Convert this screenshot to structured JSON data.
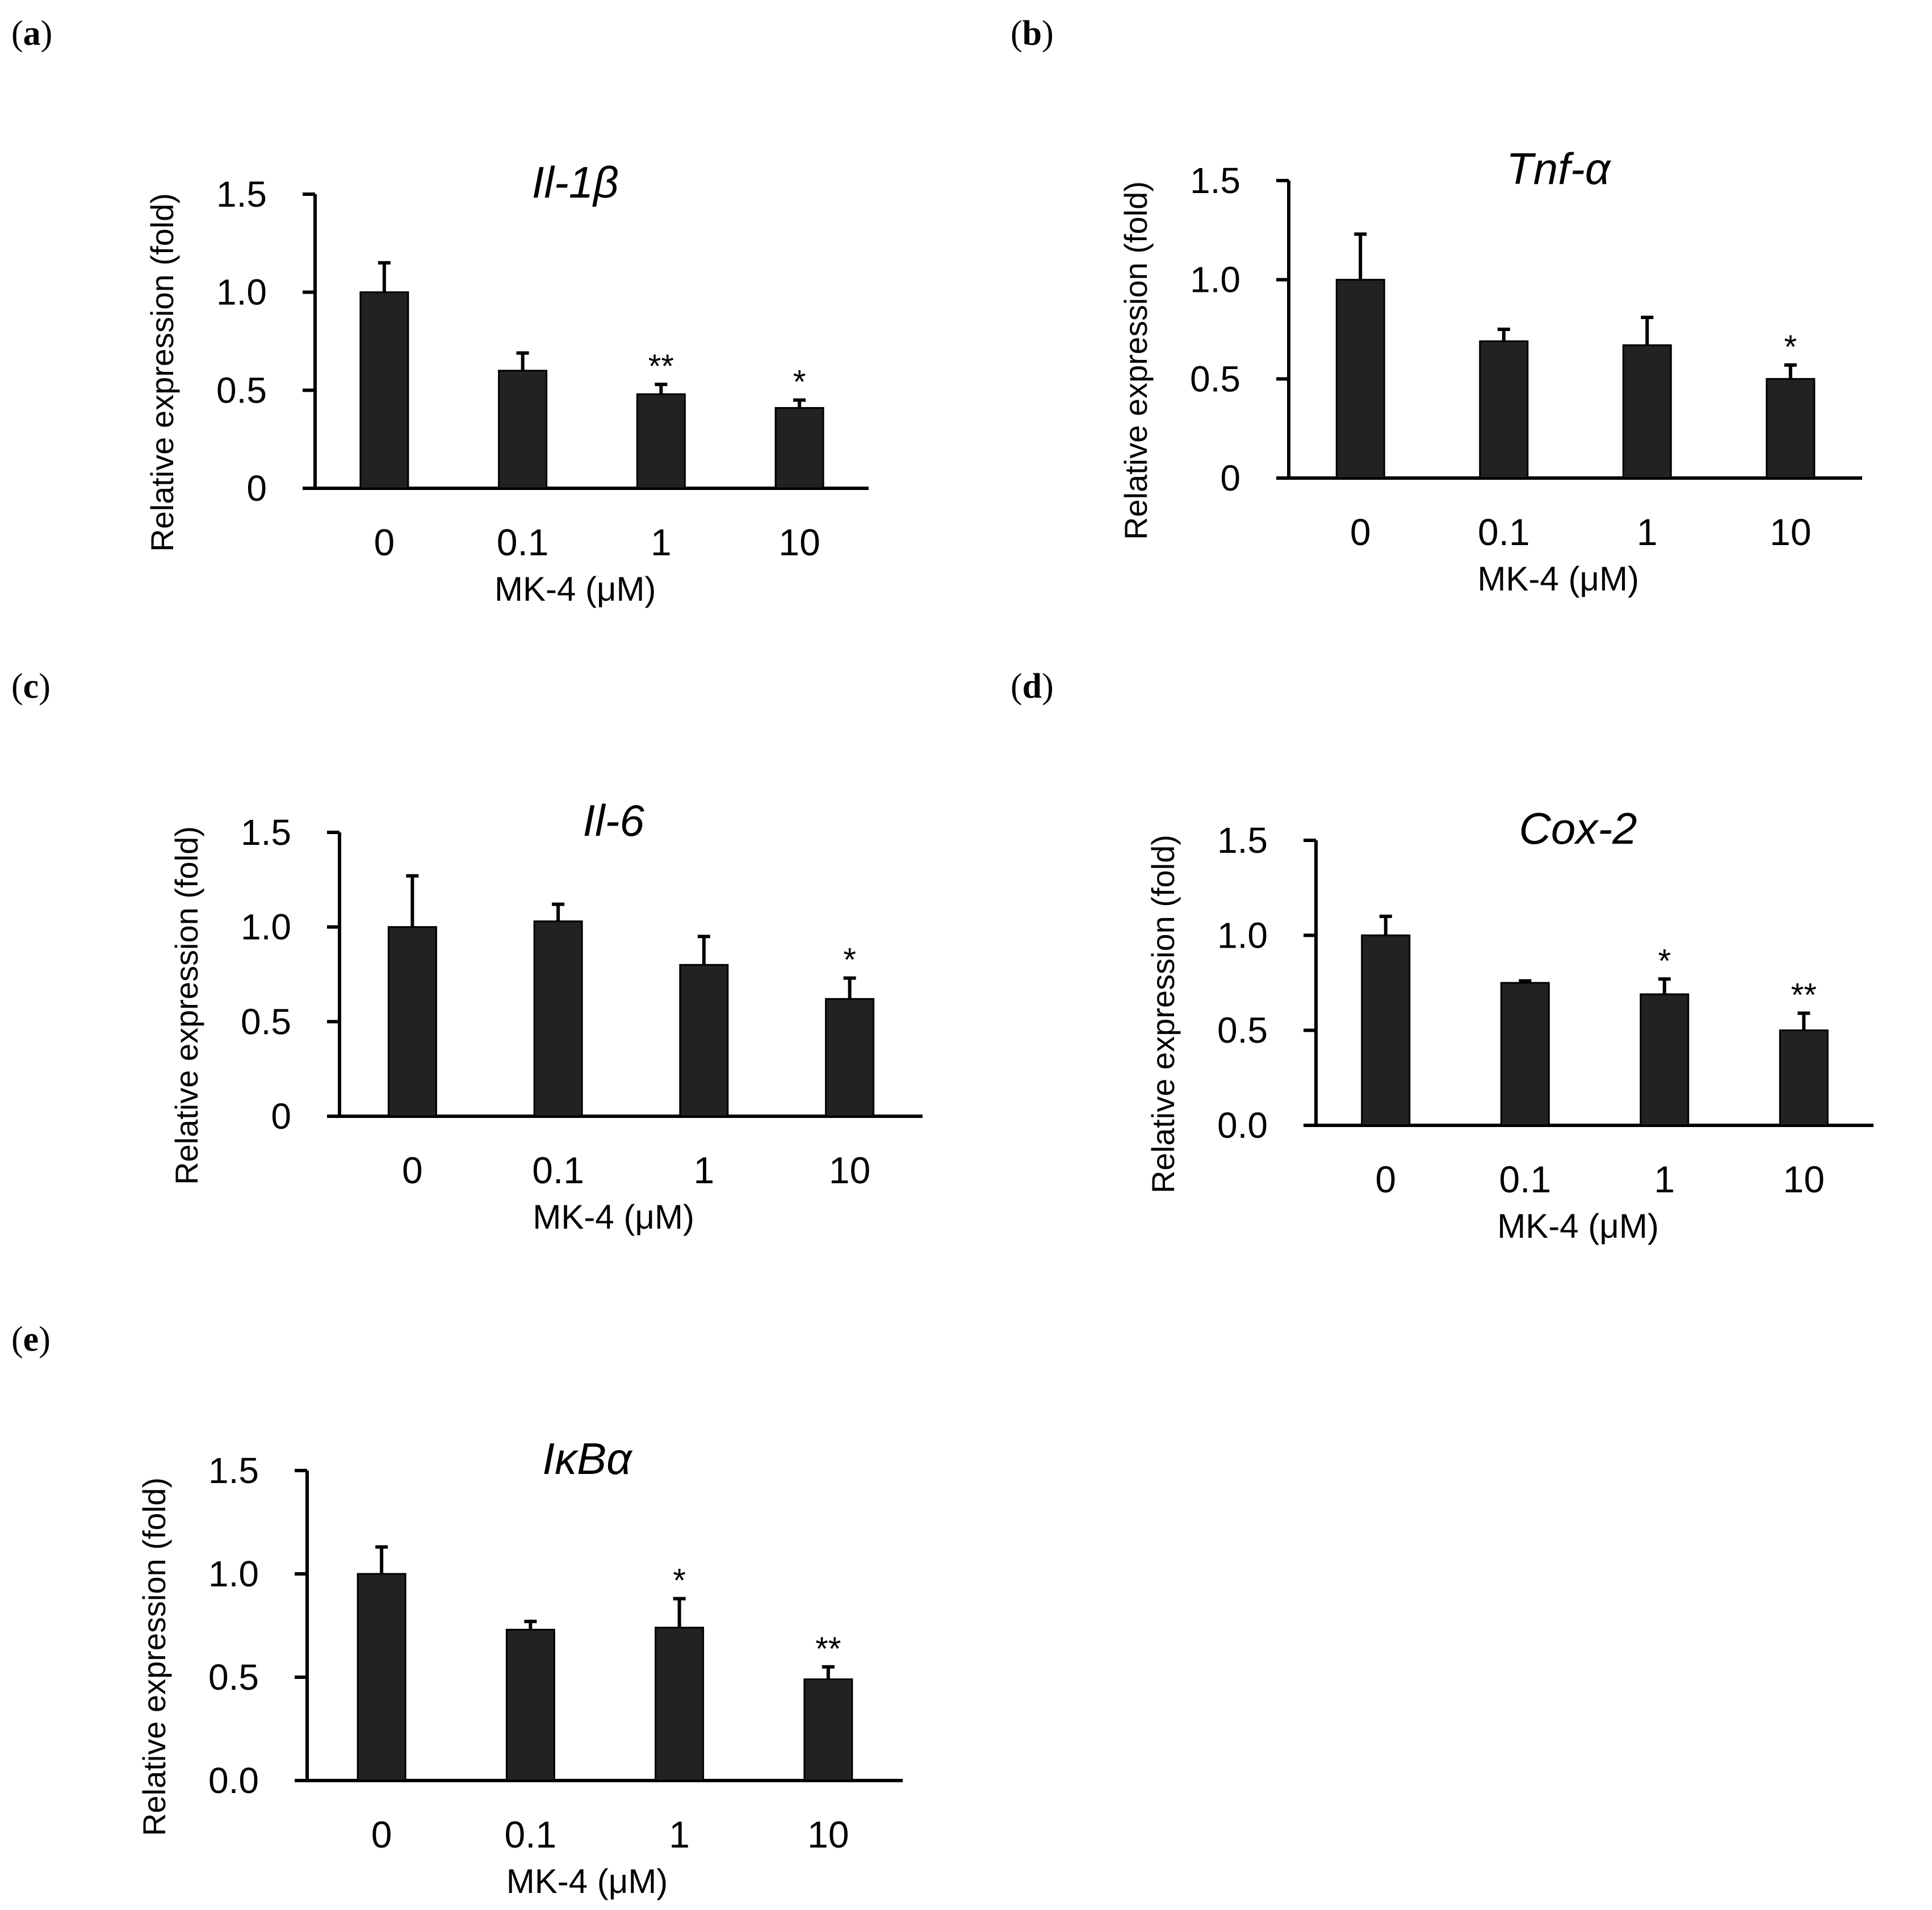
{
  "figure": {
    "style": {
      "bar_color": "#222222",
      "axis_color": "#000000",
      "background": "#ffffff"
    },
    "panels": [
      {
        "label": "a",
        "gene": "Il-1β"
      },
      {
        "label": "b",
        "gene": "Tnf-α"
      },
      {
        "label": "c",
        "gene": "Il-6"
      },
      {
        "label": "d",
        "gene": "Cox-2"
      },
      {
        "label": "e",
        "gene": "IκBα"
      }
    ]
  },
  "chart_data": [
    {
      "type": "bar",
      "panel": "a",
      "title": "Il-1β",
      "xlabel": "MK-4 (μM)",
      "ylabel": "Relative expression (fold)",
      "categories": [
        "0",
        "0.1",
        "1",
        "10"
      ],
      "values": [
        1.0,
        0.6,
        0.48,
        0.41
      ],
      "errors": [
        0.15,
        0.09,
        0.05,
        0.04
      ],
      "significance": [
        "",
        "",
        "**",
        "*"
      ],
      "ylim": [
        0,
        1.5
      ],
      "yticks": [
        0,
        0.5,
        1.0,
        1.5
      ],
      "ytick_labels": [
        "0",
        "0.5",
        "1.0",
        "1.5"
      ]
    },
    {
      "type": "bar",
      "panel": "b",
      "title": "Tnf-α",
      "xlabel": "MK-4 (μM)",
      "ylabel": "Relative expression (fold)",
      "categories": [
        "0",
        "0.1",
        "1",
        "10"
      ],
      "values": [
        1.0,
        0.69,
        0.67,
        0.5
      ],
      "errors": [
        0.23,
        0.06,
        0.14,
        0.07
      ],
      "significance": [
        "",
        "",
        "",
        "*"
      ],
      "ylim": [
        0,
        1.5
      ],
      "yticks": [
        0,
        0.5,
        1.0,
        1.5
      ],
      "ytick_labels": [
        "0",
        "0.5",
        "1.0",
        "1.5"
      ]
    },
    {
      "type": "bar",
      "panel": "c",
      "title": "Il-6",
      "xlabel": "MK-4 (μM)",
      "ylabel": "Relative expression (fold)",
      "categories": [
        "0",
        "0.1",
        "1",
        "10"
      ],
      "values": [
        1.0,
        1.03,
        0.8,
        0.62
      ],
      "errors": [
        0.27,
        0.09,
        0.15,
        0.11
      ],
      "significance": [
        "",
        "",
        "",
        "*"
      ],
      "ylim": [
        0,
        1.5
      ],
      "yticks": [
        0,
        0.5,
        1.0,
        1.5
      ],
      "ytick_labels": [
        "0",
        "0.5",
        "1.0",
        "1.5"
      ]
    },
    {
      "type": "bar",
      "panel": "d",
      "title": "Cox-2",
      "xlabel": "MK-4 (μM)",
      "ylabel": "Relative expression (fold)",
      "categories": [
        "0",
        "0.1",
        "1",
        "10"
      ],
      "values": [
        1.0,
        0.75,
        0.69,
        0.5
      ],
      "errors": [
        0.1,
        0.01,
        0.08,
        0.09
      ],
      "significance": [
        "",
        "",
        "*",
        "**"
      ],
      "ylim": [
        0,
        1.5
      ],
      "yticks": [
        0,
        0.5,
        1.0,
        1.5
      ],
      "ytick_labels": [
        "0.0",
        "0.5",
        "1.0",
        "1.5"
      ]
    },
    {
      "type": "bar",
      "panel": "e",
      "title": "IκBα",
      "xlabel": "MK-4 (μM)",
      "ylabel": "Relative expression (fold)",
      "categories": [
        "0",
        "0.1",
        "1",
        "10"
      ],
      "values": [
        1.0,
        0.73,
        0.74,
        0.49
      ],
      "errors": [
        0.13,
        0.04,
        0.14,
        0.06
      ],
      "significance": [
        "",
        "",
        "*",
        "**"
      ],
      "ylim": [
        0,
        1.5
      ],
      "yticks": [
        0,
        0.5,
        1.0,
        1.5
      ],
      "ytick_labels": [
        "0.0",
        "0.5",
        "1.0",
        "1.5"
      ]
    }
  ]
}
